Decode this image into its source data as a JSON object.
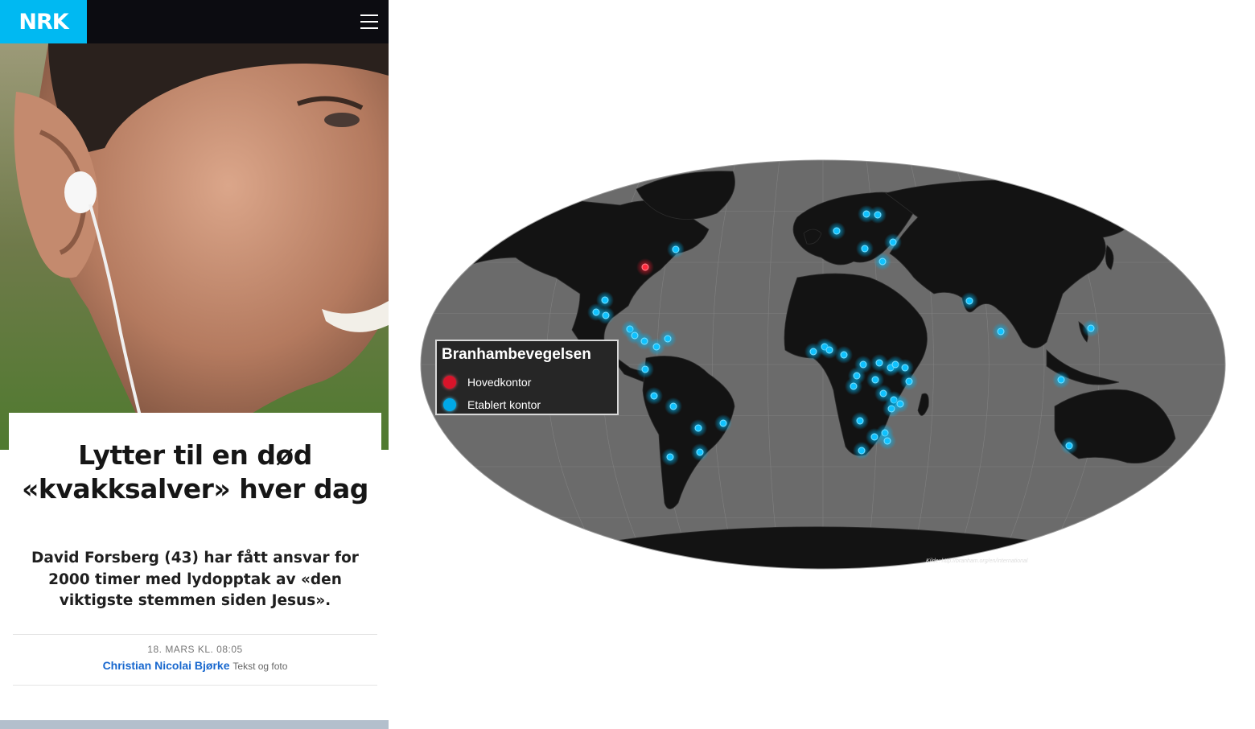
{
  "header": {
    "logo_text": "NRK",
    "menu_icon": "hamburger-menu-icon",
    "logo_color": "#00b9f2",
    "bar_color": "#0c0c11"
  },
  "hero": {
    "image": "man-with-earphones-photo"
  },
  "article": {
    "headline": "Lytter til en død «kvakksalver» hver dag",
    "lead": "David Forsberg (43) har fått ansvar for 2000 timer med lydopptak av «den viktigste stemmen siden Jesus».",
    "date": "18. MARS KL. 08:05",
    "author": "Christian Nicolai Bjørke",
    "author_role": "Tekst og foto",
    "author_color": "#1767ce"
  },
  "map": {
    "legend_title": "Branhambevegelsen",
    "legend": [
      {
        "label": "Hovedkontor",
        "color": "#d9142a"
      },
      {
        "label": "Etablert kontor",
        "color": "#00a9e8"
      }
    ],
    "source": "Kilde: http://branham.org/en/international",
    "ocean_color": "#6b6b6b",
    "land_color": "#131313"
  }
}
